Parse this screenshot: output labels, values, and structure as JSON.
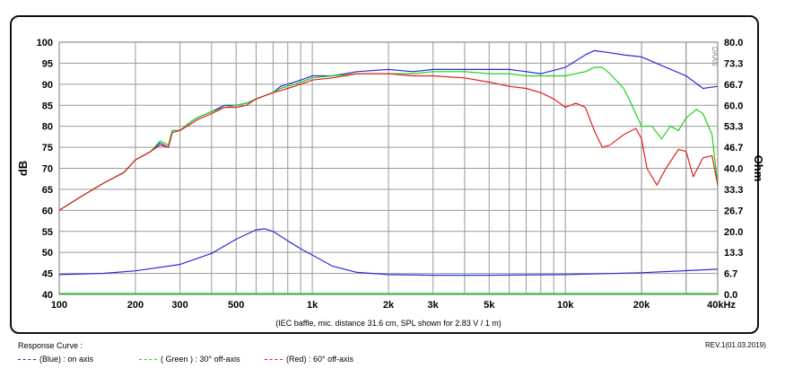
{
  "chart_data": {
    "type": "line",
    "xscale": "log",
    "xlim": [
      100,
      40000
    ],
    "ylim": [
      40,
      100
    ],
    "y2lim": [
      0,
      80
    ],
    "ylabel": "dB",
    "y2label": "Ohm",
    "xticks": [
      {
        "v": 100,
        "label": "100"
      },
      {
        "v": 200,
        "label": "200"
      },
      {
        "v": 300,
        "label": "300"
      },
      {
        "v": 500,
        "label": "500"
      },
      {
        "v": 1000,
        "label": "1k"
      },
      {
        "v": 2000,
        "label": "2k"
      },
      {
        "v": 3000,
        "label": "3k"
      },
      {
        "v": 5000,
        "label": "5k"
      },
      {
        "v": 10000,
        "label": "10k"
      },
      {
        "v": 20000,
        "label": "20k"
      },
      {
        "v": 40000,
        "label": "40kHz"
      }
    ],
    "yticks": [
      "100",
      "95",
      "90",
      "85",
      "80",
      "75",
      "70",
      "65",
      "60",
      "55",
      "50",
      "45",
      "40"
    ],
    "y2ticks": [
      "80.0",
      "73.3",
      "66.7",
      "60.0",
      "53.3",
      "46.7",
      "40.0",
      "33.3",
      "26.7",
      "20.0",
      "13.3",
      "6.7",
      "0.0"
    ],
    "caption": "(IEC baffle, mic. distance 31.6 cm, SPL shown for 2.83 V / 1 m)",
    "watermark": "DAAS",
    "series": [
      {
        "name": "(Blue) : on axis",
        "color": "#2b2bd6",
        "x": [
          100,
          120,
          150,
          180,
          200,
          230,
          250,
          270,
          280,
          300,
          330,
          350,
          400,
          450,
          500,
          550,
          600,
          700,
          750,
          800,
          900,
          1000,
          1200,
          1500,
          2000,
          2500,
          3000,
          4000,
          5000,
          6000,
          7000,
          8000,
          10000,
          12000,
          13000,
          15000,
          17000,
          20000,
          25000,
          30000,
          35000,
          40000
        ],
        "y": [
          60,
          63,
          66.5,
          69,
          72,
          74,
          76,
          75,
          79,
          79,
          81,
          82,
          83.5,
          85,
          85,
          85.5,
          86.5,
          88,
          89.5,
          90,
          91,
          92,
          92,
          93,
          93.5,
          93,
          93.5,
          93.5,
          93.5,
          93.5,
          93,
          92.5,
          94,
          97,
          98,
          97.5,
          97,
          96.5,
          94,
          92,
          89,
          89.5
        ]
      },
      {
        "name": "( Green ) : 30° off-axis",
        "color": "#1fd11f",
        "x": [
          100,
          120,
          150,
          180,
          200,
          230,
          250,
          270,
          280,
          300,
          330,
          350,
          400,
          450,
          500,
          550,
          600,
          700,
          750,
          800,
          900,
          1000,
          1200,
          1500,
          2000,
          2500,
          3000,
          4000,
          5000,
          6000,
          7000,
          8000,
          10000,
          12000,
          13000,
          14000,
          15000,
          17000,
          18000,
          20000,
          22000,
          24000,
          26000,
          28000,
          30000,
          33000,
          35000,
          38000,
          40000
        ],
        "y": [
          60,
          63,
          66.5,
          69,
          72,
          74,
          76.5,
          75.5,
          79,
          79,
          81,
          82,
          83.5,
          84.5,
          85,
          85.5,
          86.5,
          88,
          89,
          89.5,
          90.5,
          91.5,
          92,
          92.5,
          92.5,
          92.5,
          93,
          93,
          92.5,
          92.5,
          92,
          92,
          92,
          93,
          94,
          94,
          92.5,
          89,
          86,
          80,
          80,
          77,
          80,
          79,
          82,
          84,
          83,
          78,
          66
        ]
      },
      {
        "name": "(Red) : 60° off-axis",
        "color": "#e02020",
        "x": [
          100,
          120,
          150,
          180,
          200,
          230,
          250,
          270,
          280,
          300,
          330,
          350,
          400,
          450,
          500,
          550,
          600,
          700,
          750,
          800,
          900,
          1000,
          1200,
          1500,
          2000,
          2500,
          3000,
          4000,
          5000,
          6000,
          7000,
          8000,
          9000,
          10000,
          11000,
          12000,
          13000,
          14000,
          15000,
          17000,
          19000,
          20000,
          21000,
          23000,
          25000,
          28000,
          30000,
          32000,
          35000,
          38000,
          40000
        ],
        "y": [
          60,
          63,
          66.5,
          69,
          72,
          74,
          75.5,
          75,
          78.5,
          79,
          80.5,
          81.5,
          83,
          84.5,
          84.5,
          85,
          86.5,
          88,
          88.5,
          89,
          90,
          91,
          91.5,
          92.5,
          92.5,
          92,
          92,
          91.5,
          90.5,
          89.5,
          89,
          88,
          86.5,
          84.5,
          85.5,
          84.5,
          79,
          75,
          75.5,
          78,
          79.5,
          77,
          70,
          66,
          70,
          74.5,
          74,
          68,
          72.5,
          73,
          66
        ]
      },
      {
        "name": "impedance",
        "color": "#2b2bd6",
        "axis": "y2",
        "x": [
          100,
          150,
          200,
          300,
          400,
          500,
          600,
          650,
          700,
          800,
          900,
          1000,
          1200,
          1500,
          2000,
          3000,
          5000,
          10000,
          20000,
          40000
        ],
        "y": [
          6.3,
          6.7,
          7.5,
          9.5,
          13,
          17.5,
          20.5,
          20.8,
          20,
          17,
          14.5,
          12.5,
          9,
          7,
          6.3,
          6.1,
          6.1,
          6.3,
          6.9,
          8
        ]
      }
    ]
  },
  "legend": {
    "title": "Response Curve :",
    "blue": "(Blue)  : on axis",
    "green": "( Green ) : 30° off-axis",
    "red": "(Red) : 60° off-axis"
  },
  "revision": "REV.1(01.03.2019)"
}
